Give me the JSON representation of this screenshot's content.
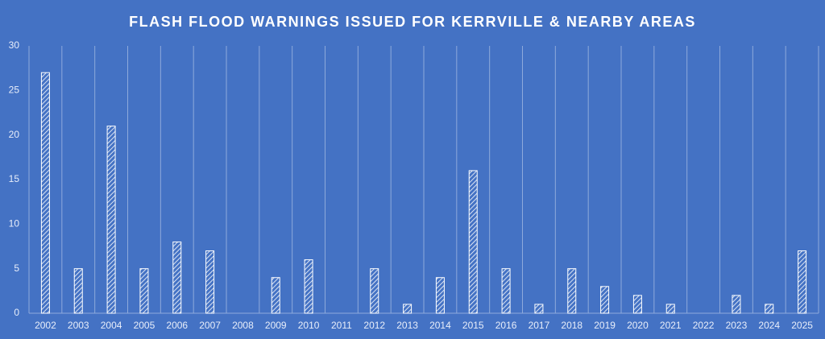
{
  "chart_data": {
    "type": "bar",
    "title": "FLASH FLOOD WARNINGS ISSUED FOR KERRVILLE & NEARBY AREAS",
    "categories": [
      "2002",
      "2003",
      "2004",
      "2005",
      "2006",
      "2007",
      "2008",
      "2009",
      "2010",
      "2011",
      "2012",
      "2013",
      "2014",
      "2015",
      "2016",
      "2017",
      "2018",
      "2019",
      "2020",
      "2021",
      "2022",
      "2023",
      "2024",
      "2025"
    ],
    "values": [
      27,
      5,
      21,
      5,
      8,
      7,
      0,
      4,
      6,
      0,
      5,
      1,
      4,
      16,
      5,
      1,
      5,
      3,
      2,
      1,
      0,
      2,
      1,
      7
    ],
    "color": "#ffffff",
    "ylim": [
      0,
      30
    ],
    "yticks": [
      0,
      5,
      10,
      15,
      20,
      25,
      30
    ],
    "grid": true
  }
}
